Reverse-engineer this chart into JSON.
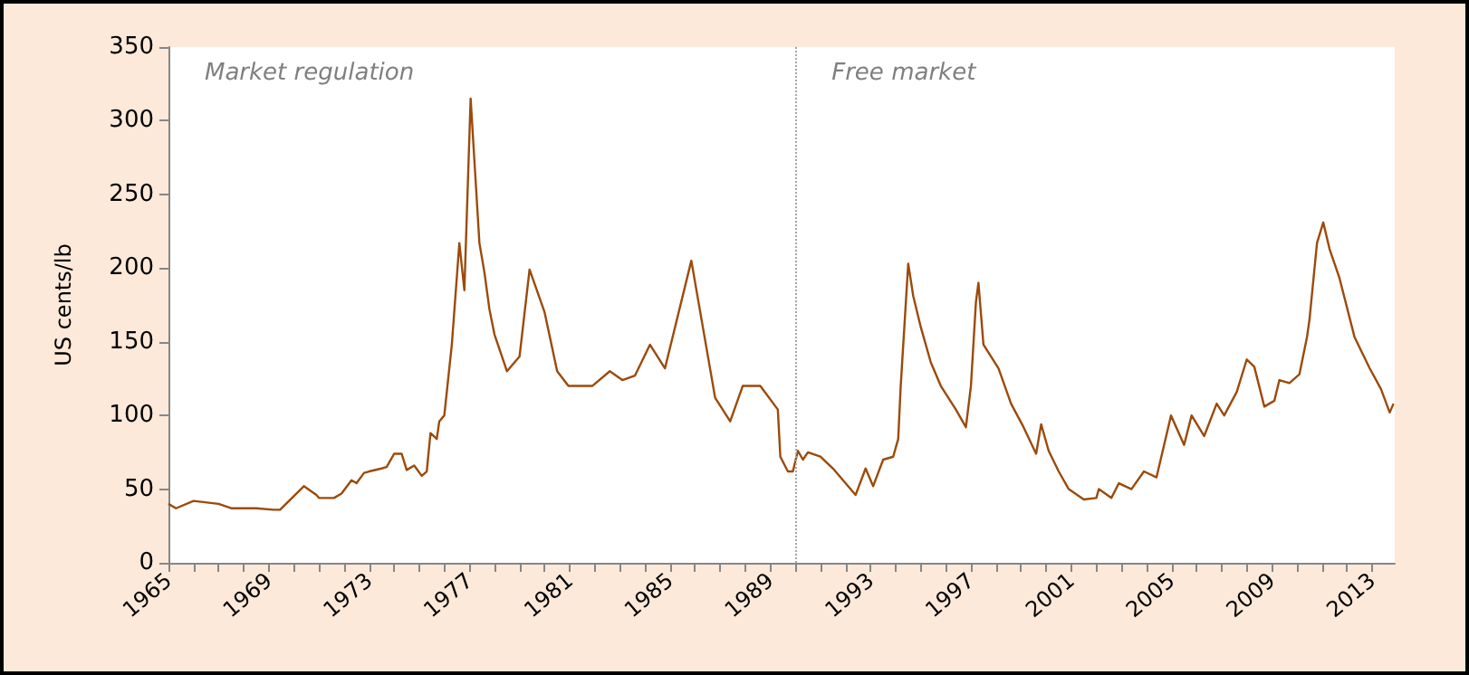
{
  "chart_data": {
    "type": "line",
    "ylabel": "US cents/lb",
    "x": [
      1965,
      1965.3,
      1966,
      1967,
      1967.5,
      1968.5,
      1969.2,
      1969.45,
      1970.4,
      1970.9,
      1971.0,
      1971.6,
      1971.9,
      1972.3,
      1972.5,
      1972.8,
      1973.0,
      1973.5,
      1973.7,
      1974.0,
      1974.3,
      1974.5,
      1974.8,
      1975.1,
      1975.3,
      1975.45,
      1975.7,
      1975.8,
      1976.0,
      1976.3,
      1976.6,
      1976.8,
      1977.05,
      1977.4,
      1977.6,
      1977.8,
      1978.0,
      1978.5,
      1979.0,
      1979.4,
      1980.0,
      1980.5,
      1980.95,
      1981.9,
      1982.6,
      1983.1,
      1983.6,
      1984.2,
      1984.8,
      1985.85,
      1986.8,
      1987.4,
      1987.9,
      1988.6,
      1989.3,
      1989.4,
      1989.7,
      1989.9,
      1990.1,
      1990.3,
      1990.5,
      1991.0,
      1991.5,
      1992.0,
      1992.4,
      1992.8,
      1993.1,
      1993.5,
      1993.9,
      1994.1,
      1994.2,
      1994.5,
      1994.7,
      1995.0,
      1995.4,
      1995.8,
      1996.4,
      1996.8,
      1997.0,
      1997.2,
      1997.3,
      1997.5,
      1998.1,
      1998.6,
      1999.1,
      1999.6,
      1999.8,
      2000.1,
      2000.5,
      2000.9,
      2001.5,
      2002.0,
      2002.1,
      2002.6,
      2002.9,
      2003.4,
      2003.9,
      2004.4,
      2004.98,
      2005.5,
      2005.8,
      2006.3,
      2006.8,
      2007.1,
      2007.6,
      2008.0,
      2008.3,
      2008.7,
      2009.1,
      2009.3,
      2009.7,
      2010.1,
      2010.4,
      2010.5,
      2010.8,
      2011.05,
      2011.3,
      2011.7,
      2012.3,
      2012.9,
      2013.35,
      2013.7,
      2013.85
    ],
    "series": [
      {
        "color": "#9c4a0a",
        "values": [
          40,
          37,
          42,
          40,
          37,
          37,
          36,
          36,
          52,
          46,
          44,
          44,
          47,
          56,
          54,
          61,
          62,
          64,
          65,
          74,
          74,
          63,
          66,
          59,
          62,
          88,
          84,
          96,
          100,
          148,
          217,
          185,
          315,
          217,
          197,
          172,
          155,
          130,
          140,
          199,
          170,
          130,
          120,
          120,
          130,
          124,
          127,
          148,
          132,
          205,
          112,
          96,
          120,
          120,
          104,
          72,
          62,
          62,
          76,
          70,
          75,
          72,
          64,
          54,
          46,
          64,
          52,
          70,
          72,
          84,
          120,
          203,
          181,
          160,
          136,
          120,
          104,
          92,
          120,
          177,
          190,
          148,
          132,
          108,
          92,
          74,
          94,
          76,
          62,
          50,
          43,
          44,
          50,
          44,
          54,
          50,
          62,
          58,
          100,
          80,
          100,
          86,
          108,
          100,
          116,
          138,
          133,
          106,
          110,
          124,
          122,
          128,
          153,
          165,
          217,
          231,
          213,
          193,
          153,
          132,
          118,
          102,
          108
        ]
      }
    ],
    "xlim": [
      1965,
      2013.9
    ],
    "xticks": [
      1965,
      {
        "value": 1966,
        "label": null
      },
      {
        "value": 1967,
        "label": null
      },
      {
        "value": 1968,
        "label": null
      },
      1969,
      {
        "value": 1970,
        "label": null
      },
      {
        "value": 1971,
        "label": null
      },
      {
        "value": 1972,
        "label": null
      },
      1973,
      {
        "value": 1974,
        "label": null
      },
      {
        "value": 1975,
        "label": null
      },
      {
        "value": 1976,
        "label": null
      },
      1977,
      {
        "value": 1978,
        "label": null
      },
      {
        "value": 1979,
        "label": null
      },
      {
        "value": 1980,
        "label": null
      },
      1981,
      {
        "value": 1982,
        "label": null
      },
      {
        "value": 1983,
        "label": null
      },
      {
        "value": 1984,
        "label": null
      },
      1985,
      {
        "value": 1986,
        "label": null
      },
      {
        "value": 1987,
        "label": null
      },
      {
        "value": 1988,
        "label": null
      },
      1989,
      {
        "value": 1990,
        "label": null
      },
      {
        "value": 1991,
        "label": null
      },
      {
        "value": 1992,
        "label": null
      },
      1993,
      {
        "value": 1994,
        "label": null
      },
      {
        "value": 1995,
        "label": null
      },
      {
        "value": 1996,
        "label": null
      },
      1997,
      {
        "value": 1998,
        "label": null
      },
      {
        "value": 1999,
        "label": null
      },
      {
        "value": 2000,
        "label": null
      },
      2001,
      {
        "value": 2002,
        "label": null
      },
      {
        "value": 2003,
        "label": null
      },
      {
        "value": 2004,
        "label": null
      },
      2005,
      {
        "value": 2006,
        "label": null
      },
      {
        "value": 2007,
        "label": null
      },
      {
        "value": 2008,
        "label": null
      },
      2009,
      {
        "value": 2010,
        "label": null
      },
      {
        "value": 2011,
        "label": null
      },
      {
        "value": 2012,
        "label": null
      },
      2013
    ],
    "ylim": [
      0,
      350
    ],
    "yticks": [
      0,
      50,
      100,
      150,
      200,
      250,
      300,
      350
    ],
    "ref_lines": [
      {
        "axis": "x",
        "value": 1990,
        "color": "#a6a6a6",
        "line_style": "dotted"
      }
    ],
    "annotations": [
      "Market regulation",
      "Free market"
    ]
  }
}
